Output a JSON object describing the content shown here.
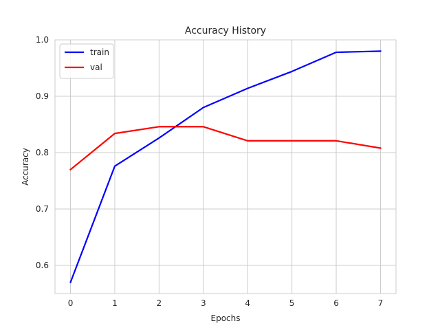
{
  "chart_data": {
    "type": "line",
    "title": "Accuracy History",
    "xlabel": "Epochs",
    "ylabel": "Accuracy",
    "x": [
      0,
      1,
      2,
      3,
      4,
      5,
      6,
      7
    ],
    "xticks": [
      "0",
      "1",
      "2",
      "3",
      "4",
      "5",
      "6",
      "7"
    ],
    "xlim": [
      -0.35,
      7.35
    ],
    "ylim": [
      0.55,
      1.0
    ],
    "yticks": [
      "0.6",
      "0.7",
      "0.8",
      "0.9",
      "1.0"
    ],
    "ytick_values": [
      0.6,
      0.7,
      0.8,
      0.9,
      1.0
    ],
    "grid": true,
    "legend_placement": "upper-left",
    "series": [
      {
        "name": "train",
        "color": "#0000ff",
        "values": [
          0.57,
          0.776,
          0.826,
          0.88,
          0.914,
          0.944,
          0.978,
          0.98
        ]
      },
      {
        "name": "val",
        "color": "#ff0000",
        "values": [
          0.77,
          0.834,
          0.846,
          0.846,
          0.821,
          0.821,
          0.821,
          0.808
        ]
      }
    ]
  }
}
